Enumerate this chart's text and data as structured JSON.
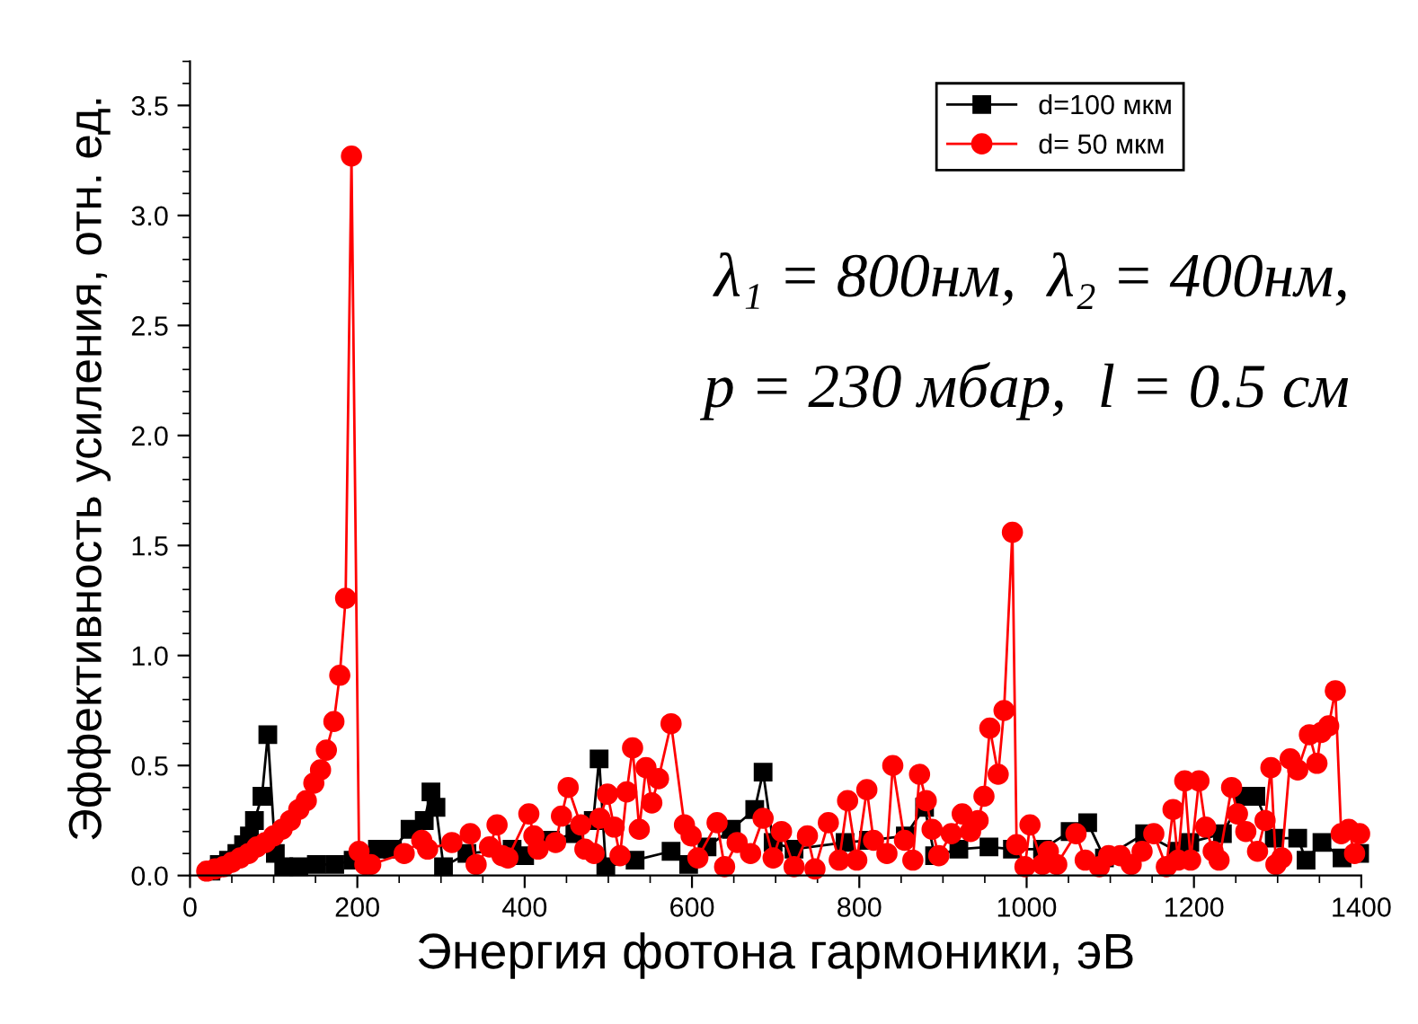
{
  "chart_data": {
    "type": "line",
    "xlabel": "Энергия фотона гармоники, эВ",
    "ylabel": "Эффективность усиления, отн. ед.",
    "xlim": [
      0,
      1400
    ],
    "xticks": [
      0,
      200,
      400,
      600,
      800,
      1000,
      1200,
      1400
    ],
    "ylim": [
      0,
      3.7
    ],
    "yticks": [
      {
        "value": 0,
        "label": "0.0"
      },
      0.5,
      {
        "value": 1,
        "label": "1.0"
      },
      1.5,
      {
        "value": 2,
        "label": "2.0"
      },
      2.5,
      {
        "value": 3,
        "label": "3.0"
      },
      3.5
    ],
    "grid": false,
    "legend": "top right",
    "line_style": "solid",
    "annotations": [
      "λ₁ = 800нм,  λ₂ = 400нм,",
      "p = 230 мбар,  l = 0.5 см"
    ],
    "series": [
      {
        "name": "d=100 мкм",
        "color": "#000000",
        "marker": "square",
        "x": [
          25,
          35,
          46,
          56,
          64,
          71,
          77,
          86,
          93,
          102,
          112,
          130,
          151,
          173,
          195,
          224,
          242,
          263,
          280,
          288,
          294,
          303,
          331,
          385,
          400,
          431,
          460,
          482,
          489,
          497,
          532,
          575,
          596,
          618,
          647,
          675,
          685,
          697,
          722,
          783,
          811,
          855,
          878,
          890,
          919,
          955,
          983,
          1019,
          1052,
          1073,
          1093,
          1141,
          1180,
          1195,
          1234,
          1259,
          1274,
          1296,
          1324,
          1334,
          1353,
          1377,
          1398
        ],
        "values": [
          0.02,
          0.05,
          0.07,
          0.1,
          0.14,
          0.18,
          0.25,
          0.36,
          0.64,
          0.1,
          0.04,
          0.04,
          0.05,
          0.05,
          0.07,
          0.12,
          0.12,
          0.21,
          0.25,
          0.38,
          0.31,
          0.04,
          0.1,
          0.12,
          0.09,
          0.16,
          0.19,
          0.25,
          0.53,
          0.04,
          0.07,
          0.11,
          0.05,
          0.13,
          0.21,
          0.3,
          0.47,
          0.15,
          0.12,
          0.15,
          0.16,
          0.18,
          0.31,
          0.09,
          0.12,
          0.13,
          0.12,
          0.12,
          0.2,
          0.24,
          0.08,
          0.19,
          0.11,
          0.15,
          0.19,
          0.36,
          0.36,
          0.17,
          0.17,
          0.07,
          0.15,
          0.08,
          0.1
        ]
      },
      {
        "name": "d= 50 мкм",
        "color": "#ff0000",
        "marker": "circle",
        "x": [
          20,
          30,
          40,
          50,
          60,
          70,
          80,
          90,
          100,
          110,
          120,
          130,
          139,
          148,
          156,
          163,
          172,
          179,
          186,
          193,
          202,
          209,
          216,
          256,
          277,
          284,
          313,
          335,
          342,
          358,
          367,
          373,
          380,
          405,
          411,
          416,
          437,
          444,
          452,
          467,
          472,
          483,
          490,
          499,
          507,
          514,
          522,
          529,
          537,
          545,
          552,
          560,
          575,
          591,
          599,
          607,
          630,
          639,
          654,
          670,
          685,
          697,
          707,
          722,
          738,
          747,
          763,
          776,
          786,
          797,
          809,
          817,
          833,
          840,
          854,
          864,
          872,
          880,
          887,
          895,
          910,
          923,
          933,
          942,
          949,
          956,
          966,
          973,
          983,
          988,
          998,
          1004,
          1019,
          1026,
          1036,
          1059,
          1070,
          1087,
          1098,
          1112,
          1125,
          1138,
          1152,
          1167,
          1175,
          1181,
          1189,
          1196,
          1206,
          1214,
          1223,
          1230,
          1245,
          1252,
          1262,
          1276,
          1285,
          1292,
          1298,
          1305,
          1315,
          1324,
          1338,
          1347,
          1352,
          1361,
          1369,
          1376,
          1385,
          1392,
          1398
        ],
        "values": [
          0.02,
          0.03,
          0.04,
          0.06,
          0.08,
          0.1,
          0.13,
          0.15,
          0.18,
          0.21,
          0.25,
          0.3,
          0.34,
          0.42,
          0.48,
          0.57,
          0.7,
          0.91,
          1.26,
          3.27,
          0.11,
          0.05,
          0.05,
          0.1,
          0.16,
          0.12,
          0.15,
          0.19,
          0.05,
          0.13,
          0.23,
          0.09,
          0.08,
          0.28,
          0.18,
          0.12,
          0.15,
          0.27,
          0.4,
          0.23,
          0.12,
          0.1,
          0.26,
          0.37,
          0.22,
          0.09,
          0.38,
          0.58,
          0.21,
          0.49,
          0.33,
          0.44,
          0.69,
          0.23,
          0.18,
          0.08,
          0.24,
          0.04,
          0.15,
          0.1,
          0.26,
          0.08,
          0.2,
          0.04,
          0.18,
          0.03,
          0.24,
          0.07,
          0.34,
          0.07,
          0.39,
          0.16,
          0.1,
          0.5,
          0.16,
          0.07,
          0.46,
          0.34,
          0.21,
          0.09,
          0.19,
          0.28,
          0.2,
          0.25,
          0.36,
          0.67,
          0.46,
          0.75,
          1.56,
          0.14,
          0.04,
          0.23,
          0.05,
          0.11,
          0.05,
          0.19,
          0.07,
          0.04,
          0.09,
          0.09,
          0.05,
          0.11,
          0.19,
          0.04,
          0.3,
          0.07,
          0.43,
          0.07,
          0.43,
          0.22,
          0.11,
          0.07,
          0.4,
          0.28,
          0.2,
          0.11,
          0.25,
          0.49,
          0.05,
          0.08,
          0.53,
          0.48,
          0.64,
          0.51,
          0.65,
          0.68,
          0.84,
          0.19,
          0.21,
          0.1,
          0.19
        ]
      }
    ]
  }
}
